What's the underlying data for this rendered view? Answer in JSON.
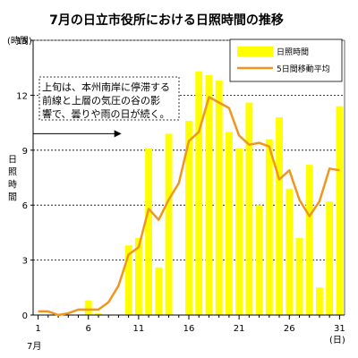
{
  "chart_data": {
    "type": "bar",
    "title": "7月の日立市役所における日照時間の推移",
    "y_unit_label": "(時間)",
    "ylabel": "日照時間",
    "x_unit_label": "(日)",
    "month_label": "7月",
    "ylim": [
      0,
      15
    ],
    "yticks": [
      0,
      3,
      6,
      9,
      12,
      15
    ],
    "xlim": [
      1,
      31
    ],
    "xticks": [
      1,
      6,
      11,
      16,
      21,
      26,
      31
    ],
    "grid": "horizontal-dashed",
    "legend_position": "top-right",
    "annotation": {
      "lines": [
        "上旬は、本州南岸に停滞する",
        "前線と上層の気圧の谷の影",
        "響で、曇りや雨の日が続く。"
      ],
      "arrow_range": [
        1,
        10
      ],
      "arrow_y": 9.9
    },
    "series": [
      {
        "name": "日照時間",
        "kind": "bar",
        "color": "#ffff00",
        "x": [
          1,
          2,
          3,
          4,
          5,
          6,
          7,
          8,
          9,
          10,
          11,
          12,
          13,
          14,
          15,
          16,
          17,
          18,
          19,
          20,
          21,
          22,
          23,
          24,
          25,
          26,
          27,
          28,
          29,
          30,
          31
        ],
        "values": [
          0,
          0,
          0,
          0,
          0,
          0.8,
          0.1,
          0,
          0,
          3.8,
          4.2,
          9.1,
          2.6,
          9.9,
          0,
          10.6,
          13.3,
          13.1,
          12.8,
          10,
          9.1,
          11.6,
          6,
          9.6,
          10.8,
          6.9,
          4.2,
          8.2,
          1.5,
          6.2,
          11.4
        ]
      },
      {
        "name": "5日間移動平均",
        "kind": "line",
        "color": "#f0961e",
        "x": [
          1,
          2,
          3,
          4,
          5,
          6,
          7,
          8,
          9,
          10,
          11,
          12,
          13,
          14,
          15,
          16,
          17,
          18,
          19,
          20,
          21,
          22,
          23,
          24,
          25,
          26,
          27,
          28,
          29,
          30,
          31
        ],
        "values": [
          0.2,
          0.2,
          0,
          0.1,
          0.3,
          0.3,
          0.3,
          0.7,
          1.6,
          3.3,
          3.7,
          5.8,
          5.2,
          6.3,
          7.2,
          9.5,
          10,
          11.9,
          11.6,
          11.3,
          9.8,
          9.3,
          9.4,
          9.2,
          7.4,
          7.9,
          6.3,
          5.4,
          6.2,
          8,
          7.9
        ]
      }
    ]
  }
}
